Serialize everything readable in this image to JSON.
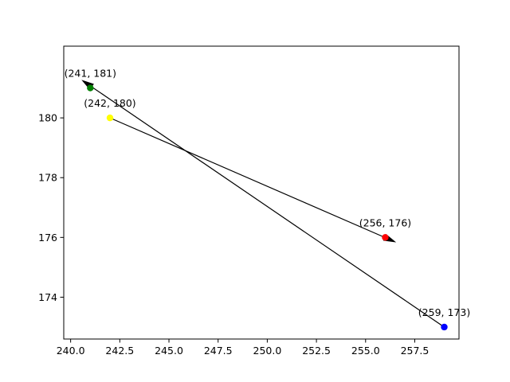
{
  "chart_data": {
    "type": "scatter",
    "title": "",
    "xlabel": "",
    "ylabel": "",
    "xlim": [
      239.65,
      259.75
    ],
    "ylim": [
      172.6,
      182.4
    ],
    "grid": false,
    "x_ticks": [
      240.0,
      242.5,
      245.0,
      247.5,
      250.0,
      252.5,
      255.0,
      257.5
    ],
    "x_tick_labels": [
      "240.0",
      "242.5",
      "245.0",
      "247.5",
      "250.0",
      "252.5",
      "255.0",
      "257.5"
    ],
    "y_ticks": [
      174,
      176,
      178,
      180
    ],
    "y_tick_labels": [
      "174",
      "176",
      "178",
      "180"
    ],
    "points": [
      {
        "x": 241,
        "y": 181,
        "color": "#008000",
        "label": "(241, 181)"
      },
      {
        "x": 242,
        "y": 180,
        "color": "#ffff00",
        "label": "(242, 180)"
      },
      {
        "x": 256,
        "y": 176,
        "color": "#ff0000",
        "label": "(256, 176)"
      },
      {
        "x": 259,
        "y": 173,
        "color": "#0000ff",
        "label": "(259, 173)"
      }
    ],
    "arrows": [
      {
        "from": [
          242,
          180
        ],
        "to": [
          256.5,
          175.85
        ],
        "color": "#000000"
      },
      {
        "from": [
          259,
          173
        ],
        "to": [
          240.6,
          181.25
        ],
        "color": "#000000"
      }
    ]
  }
}
